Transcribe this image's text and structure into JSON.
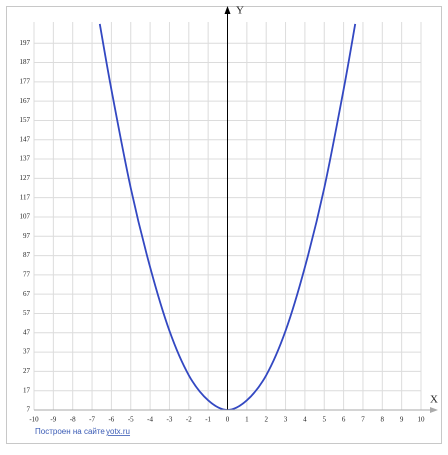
{
  "chart_data": {
    "type": "line",
    "x_label": "X",
    "y_label": "Y",
    "x": [
      -6.6,
      -6,
      -5,
      -4,
      -3,
      -2,
      -1,
      0,
      1,
      2,
      3,
      4,
      5,
      6,
      6.6
    ],
    "series": [
      {
        "name": "y",
        "color": "#3348c2",
        "values": [
          207,
          173,
          122,
          81,
          48,
          25,
          12,
          7,
          12,
          25,
          48,
          81,
          122,
          173,
          207
        ]
      }
    ],
    "xlim": [
      -10,
      10
    ],
    "xticks": [
      -10,
      -9,
      -8,
      -7,
      -6,
      -5,
      -4,
      -3,
      -2,
      -1,
      0,
      1,
      2,
      3,
      4,
      5,
      6,
      7,
      8,
      9,
      10
    ],
    "ylim": [
      7,
      208
    ],
    "yticks": [
      7,
      17,
      27,
      37,
      47,
      57,
      67,
      77,
      87,
      97,
      107,
      117,
      127,
      137,
      147,
      157,
      167,
      177,
      187,
      197
    ],
    "grid": true
  },
  "footer": {
    "text": "Построен на сайте",
    "link": "yotx.ru"
  }
}
